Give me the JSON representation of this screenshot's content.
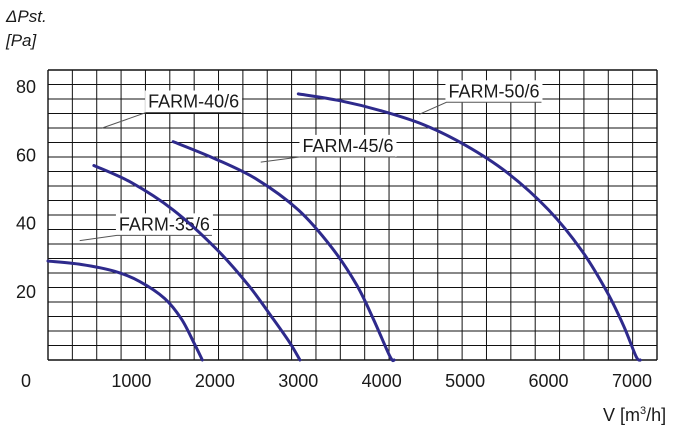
{
  "chart_data": {
    "type": "line",
    "ylabel_line1": "ΔPst.",
    "ylabel_line2": "[Pa]",
    "xlabel_main": "V [m",
    "xlabel_sup": "3",
    "xlabel_end": "/h]",
    "xlim": [
      0,
      7300
    ],
    "ylim": [
      0,
      85
    ],
    "x_ticks": [
      0,
      1000,
      2000,
      3000,
      4000,
      5000,
      6000,
      7000
    ],
    "x_tick_labels": [
      "0",
      "1000",
      "2000",
      "3000",
      "4000",
      "5000",
      "6000",
      "7000"
    ],
    "y_ticks": [
      20,
      40,
      60,
      80
    ],
    "y_tick_labels": [
      "20",
      "40",
      "60",
      "80"
    ],
    "grid": true,
    "legend": "none",
    "curve_color": "#2e2a8c",
    "series": [
      {
        "name": "FARM-35/6",
        "label_text": "FARM-35/6",
        "label_at": [
          850,
          38
        ],
        "anchor_point": [
          380,
          35
        ],
        "points": [
          [
            0,
            29
          ],
          [
            400,
            28
          ],
          [
            800,
            26
          ],
          [
            1100,
            23
          ],
          [
            1400,
            18
          ],
          [
            1600,
            12
          ],
          [
            1750,
            5
          ],
          [
            1850,
            0
          ]
        ]
      },
      {
        "name": "FARM-40/6",
        "label_text": "FARM-40/6",
        "label_at": [
          1200,
          74
        ],
        "anchor_point": [
          650,
          68
        ],
        "points": [
          [
            550,
            57
          ],
          [
            1000,
            52
          ],
          [
            1500,
            44
          ],
          [
            2000,
            33
          ],
          [
            2400,
            22
          ],
          [
            2700,
            12
          ],
          [
            2900,
            5
          ],
          [
            3020,
            0
          ]
        ]
      },
      {
        "name": "FARM-45/6",
        "label_text": "FARM-45/6",
        "label_at": [
          3050,
          61
        ],
        "anchor_point": [
          2550,
          58
        ],
        "points": [
          [
            1500,
            64
          ],
          [
            2000,
            59
          ],
          [
            2500,
            53
          ],
          [
            3000,
            44
          ],
          [
            3400,
            33
          ],
          [
            3700,
            22
          ],
          [
            3900,
            12
          ],
          [
            4100,
            1
          ],
          [
            4150,
            0
          ]
        ]
      },
      {
        "name": "FARM-50/6",
        "label_text": "FARM-50/6",
        "label_at": [
          4800,
          77
        ],
        "anchor_point": [
          4450,
          72
        ],
        "points": [
          [
            3000,
            78
          ],
          [
            3500,
            76
          ],
          [
            4000,
            73
          ],
          [
            4500,
            69
          ],
          [
            5000,
            63
          ],
          [
            5500,
            55
          ],
          [
            6000,
            44
          ],
          [
            6400,
            32
          ],
          [
            6700,
            20
          ],
          [
            6900,
            10
          ],
          [
            7050,
            1
          ],
          [
            7100,
            0
          ]
        ]
      }
    ]
  }
}
